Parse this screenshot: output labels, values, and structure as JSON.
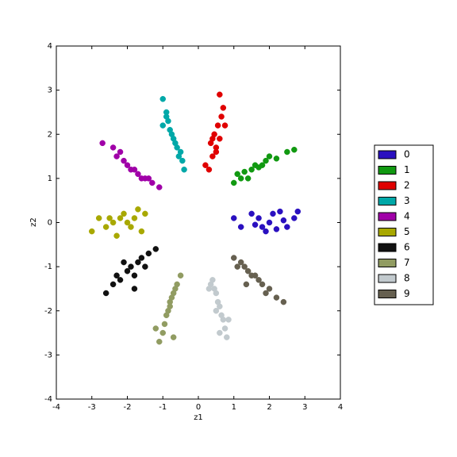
{
  "chart_data": {
    "type": "scatter",
    "xlabel": "z1",
    "ylabel": "z2",
    "xlim": [
      -4,
      4
    ],
    "ylim": [
      -4,
      4
    ],
    "xticks": [
      -4,
      -3,
      -2,
      -1,
      0,
      1,
      2,
      3,
      4
    ],
    "yticks": [
      -4,
      -3,
      -2,
      -1,
      0,
      1,
      2,
      3,
      4
    ],
    "grid": false,
    "legend": "right",
    "series": [
      {
        "name": "0",
        "color": "#2a10c0",
        "x": [
          1.2,
          1.5,
          1.7,
          1.8,
          2.0,
          2.1,
          2.2,
          2.4,
          2.5,
          2.7,
          1.0,
          1.9,
          2.3,
          1.6,
          2.8
        ],
        "values": [
          -0.1,
          0.2,
          0.1,
          -0.1,
          0.0,
          0.2,
          -0.15,
          0.05,
          -0.1,
          0.1,
          0.1,
          -0.2,
          0.25,
          -0.05,
          0.25
        ]
      },
      {
        "name": "1",
        "color": "#119911",
        "x": [
          1.0,
          1.2,
          1.3,
          1.5,
          1.6,
          1.7,
          1.9,
          2.0,
          2.2,
          2.5,
          2.7,
          1.4,
          1.8,
          1.1
        ],
        "values": [
          0.9,
          1.0,
          1.15,
          1.2,
          1.3,
          1.25,
          1.4,
          1.5,
          1.45,
          1.6,
          1.65,
          1.0,
          1.3,
          1.1
        ]
      },
      {
        "name": "2",
        "color": "#e00000",
        "x": [
          0.3,
          0.4,
          0.5,
          0.6,
          0.45,
          0.55,
          0.65,
          0.7,
          0.6,
          0.35,
          0.5,
          0.4,
          0.2,
          0.75
        ],
        "values": [
          1.2,
          1.5,
          1.7,
          1.9,
          2.0,
          2.2,
          2.4,
          2.6,
          2.9,
          1.8,
          1.6,
          1.9,
          1.3,
          2.2
        ]
      },
      {
        "name": "3",
        "color": "#00a8a8",
        "x": [
          -1.0,
          -0.9,
          -1.0,
          -0.8,
          -0.75,
          -0.7,
          -0.6,
          -0.5,
          -0.45,
          -0.4,
          -0.85,
          -0.65,
          -0.9,
          -0.55
        ],
        "values": [
          2.8,
          2.5,
          2.2,
          2.1,
          2.0,
          1.9,
          1.7,
          1.6,
          1.4,
          1.2,
          2.3,
          1.8,
          2.4,
          1.5
        ]
      },
      {
        "name": "4",
        "color": "#a000a8",
        "x": [
          -2.7,
          -2.4,
          -2.3,
          -2.1,
          -2.0,
          -1.9,
          -1.8,
          -1.6,
          -1.5,
          -1.3,
          -1.1,
          -2.2,
          -1.7,
          -1.4
        ],
        "values": [
          1.8,
          1.7,
          1.5,
          1.4,
          1.3,
          1.2,
          1.2,
          1.0,
          1.0,
          0.9,
          0.8,
          1.6,
          1.1,
          1.0
        ]
      },
      {
        "name": "5",
        "color": "#a8a800",
        "x": [
          -3.0,
          -2.8,
          -2.6,
          -2.4,
          -2.2,
          -2.1,
          -2.0,
          -1.9,
          -1.8,
          -1.6,
          -1.5,
          -2.3,
          -2.5,
          -1.7
        ],
        "values": [
          -0.2,
          0.1,
          -0.1,
          0.0,
          0.1,
          0.2,
          0.0,
          -0.1,
          0.1,
          -0.2,
          0.2,
          -0.3,
          0.1,
          0.3
        ]
      },
      {
        "name": "6",
        "color": "#111111",
        "x": [
          -2.6,
          -2.4,
          -2.3,
          -2.2,
          -2.0,
          -1.9,
          -1.8,
          -1.7,
          -1.6,
          -1.5,
          -1.4,
          -1.2,
          -2.1,
          -1.8
        ],
        "values": [
          -1.6,
          -1.4,
          -1.2,
          -1.3,
          -1.1,
          -1.0,
          -1.2,
          -0.9,
          -0.8,
          -1.0,
          -0.7,
          -0.6,
          -0.9,
          -1.5
        ]
      },
      {
        "name": "7",
        "color": "#919c62",
        "x": [
          -1.1,
          -1.0,
          -0.95,
          -0.9,
          -0.85,
          -0.8,
          -0.75,
          -0.7,
          -0.65,
          -0.6,
          -0.5,
          -1.2,
          -0.8,
          -0.7
        ],
        "values": [
          -2.7,
          -2.5,
          -2.3,
          -2.1,
          -2.0,
          -1.8,
          -1.7,
          -1.6,
          -1.5,
          -1.4,
          -1.2,
          -2.4,
          -1.9,
          -2.6
        ]
      },
      {
        "name": "8",
        "color": "#c2cace",
        "x": [
          0.4,
          0.45,
          0.5,
          0.55,
          0.6,
          0.65,
          0.7,
          0.75,
          0.8,
          0.35,
          0.5,
          0.6,
          0.3,
          0.85
        ],
        "values": [
          -1.3,
          -1.5,
          -1.6,
          -1.8,
          -1.9,
          -2.1,
          -2.2,
          -2.4,
          -2.6,
          -1.4,
          -2.0,
          -2.5,
          -1.5,
          -2.2
        ]
      },
      {
        "name": "9",
        "color": "#666050",
        "x": [
          1.0,
          1.2,
          1.3,
          1.4,
          1.5,
          1.6,
          1.7,
          1.8,
          2.0,
          2.2,
          2.4,
          1.1,
          1.9,
          1.35
        ],
        "values": [
          -0.8,
          -0.9,
          -1.0,
          -1.1,
          -1.2,
          -1.2,
          -1.3,
          -1.4,
          -1.5,
          -1.7,
          -1.8,
          -1.0,
          -1.6,
          -1.4
        ]
      }
    ]
  }
}
